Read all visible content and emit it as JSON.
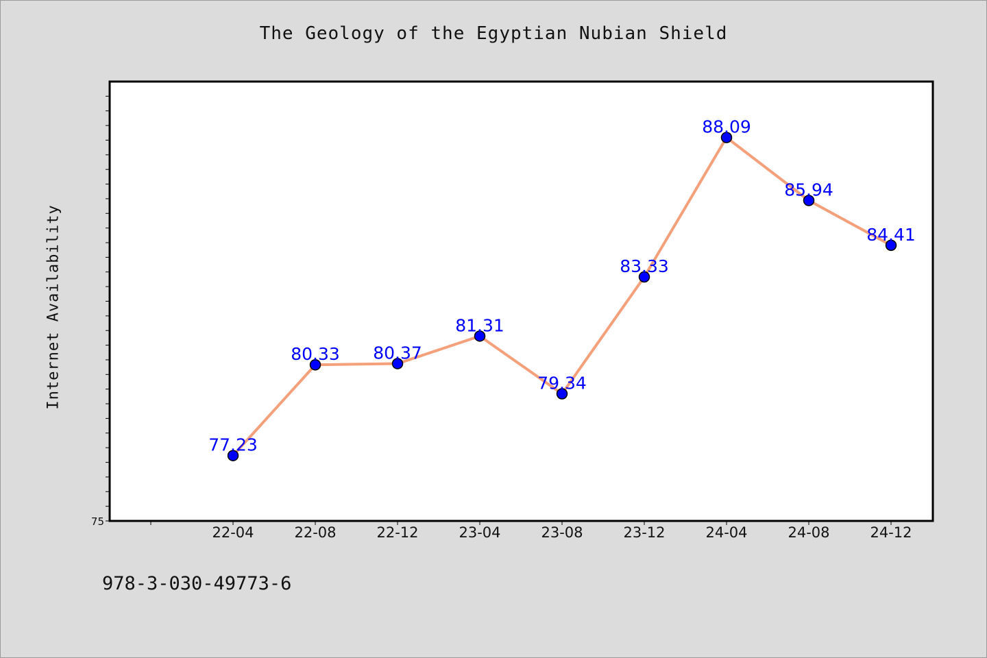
{
  "chart_data": {
    "type": "line",
    "title": "The Geology of the Egyptian Nubian Shield",
    "xlabel": "",
    "ylabel": "Internet Availability",
    "categories": [
      "22-04",
      "22-08",
      "22-12",
      "23-04",
      "23-08",
      "23-12",
      "24-04",
      "24-08",
      "24-12"
    ],
    "series": [
      {
        "values": [
          77.23,
          80.33,
          80.37,
          81.31,
          79.34,
          83.33,
          88.09,
          85.94,
          84.41
        ]
      }
    ],
    "data_labels": [
      "77.23",
      "80.33",
      "80.37",
      "81.31",
      "79.34",
      "83.33",
      "88.09",
      "85.94",
      "84.41"
    ],
    "ylim": [
      75,
      90
    ],
    "y_tick_labels": [
      "75"
    ],
    "grid": false,
    "colors": {
      "line": "#f4a07a",
      "marker": "#0000ff",
      "label": "#0000ff",
      "background": "#dcdcdc",
      "plot": "#ffffff"
    }
  },
  "footer": {
    "isbn": "978-3-030-49773-6"
  }
}
